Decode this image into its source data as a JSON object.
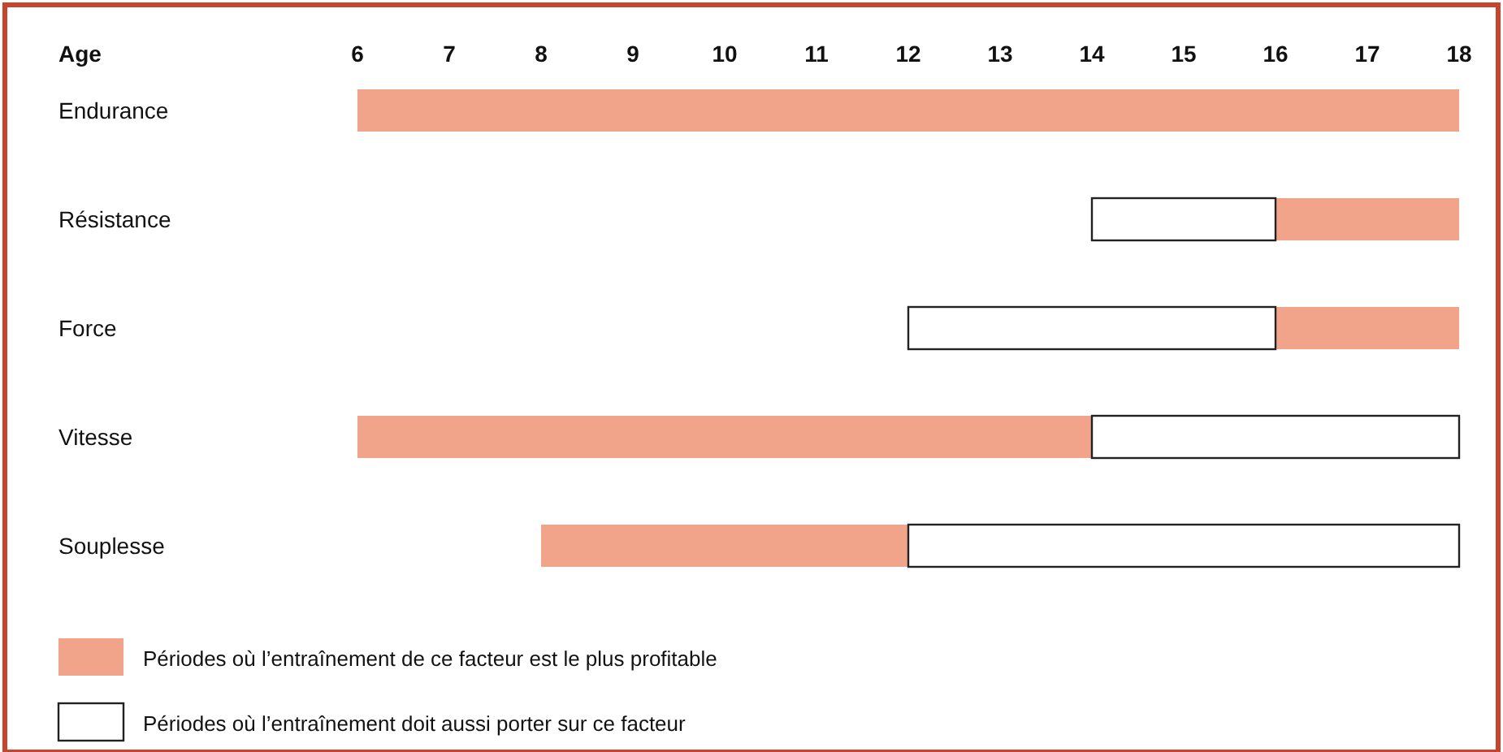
{
  "chart_data": {
    "type": "bar",
    "orientation": "horizontal",
    "xlabel": "Age",
    "categories": [
      "Endurance",
      "Résistance",
      "Force",
      "Vitesse",
      "Souplesse"
    ],
    "xlim": [
      6,
      18
    ],
    "xticks": [
      6,
      7,
      8,
      9,
      10,
      11,
      12,
      13,
      14,
      15,
      16,
      17,
      18
    ],
    "legend": "bottom left",
    "series": [
      {
        "name": "Périodes où l’entraînement de ce facteur est le plus profitable",
        "color": "#f2a48b",
        "base": [
          6,
          16,
          16,
          6,
          8
        ],
        "values": [
          12,
          2,
          2,
          8,
          4
        ]
      },
      {
        "name": "Périodes où l’entraînement doit aussi porter sur ce facteur",
        "color": "#ffffff",
        "base": [
          null,
          14,
          12,
          14,
          12
        ],
        "values": [
          null,
          2,
          4,
          4,
          6
        ]
      }
    ]
  }
}
